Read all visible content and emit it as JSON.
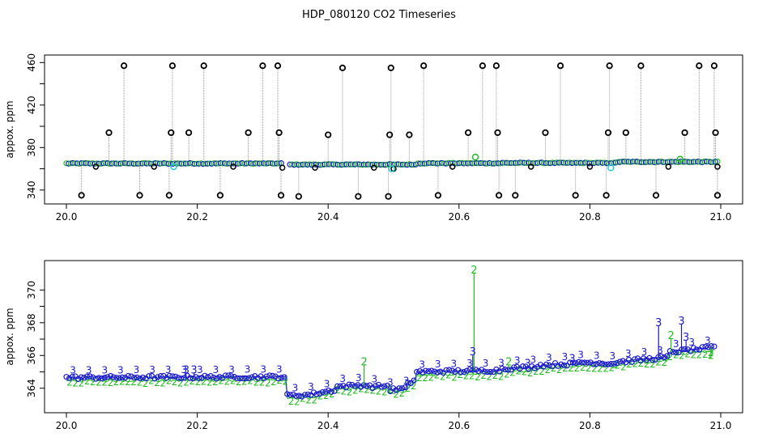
{
  "title": "HDP_080120  CO2 Timeseries",
  "colors": {
    "black": "#000000",
    "blue": "#1a1acc",
    "green": "#22bb22",
    "cyan": "#22cccc",
    "grey": "#9a9a9a"
  },
  "chart_data": [
    {
      "type": "scatter",
      "name": "top",
      "ylabel": "appox. ppm",
      "xlim": [
        20.0,
        21.0
      ],
      "ylim": [
        333,
        461
      ],
      "x_ticks": [
        20.0,
        20.2,
        20.4,
        20.6,
        20.8,
        21.0
      ],
      "x_tick_labels": [
        "20.0",
        "20.2",
        "20.4",
        "20.6",
        "20.8",
        "21.0"
      ],
      "y_ticks": [
        340,
        360,
        380,
        400,
        420,
        440,
        460
      ],
      "y_tick_labels": [
        "340",
        "",
        "380",
        "",
        "420",
        "",
        "460"
      ],
      "spike_points": [
        [
          20.023,
          335
        ],
        [
          20.065,
          394
        ],
        [
          20.088,
          457
        ],
        [
          20.112,
          335
        ],
        [
          20.157,
          335
        ],
        [
          20.16,
          394
        ],
        [
          20.162,
          457
        ],
        [
          20.187,
          394
        ],
        [
          20.21,
          457
        ],
        [
          20.235,
          335
        ],
        [
          20.278,
          394
        ],
        [
          20.3,
          457
        ],
        [
          20.323,
          457
        ],
        [
          20.325,
          394
        ],
        [
          20.328,
          335
        ],
        [
          20.355,
          334
        ],
        [
          20.4,
          392
        ],
        [
          20.422,
          455
        ],
        [
          20.446,
          334
        ],
        [
          20.492,
          334
        ],
        [
          20.494,
          392
        ],
        [
          20.496,
          455
        ],
        [
          20.524,
          392
        ],
        [
          20.546,
          457
        ],
        [
          20.568,
          335
        ],
        [
          20.614,
          394
        ],
        [
          20.636,
          457
        ],
        [
          20.657,
          457
        ],
        [
          20.659,
          394
        ],
        [
          20.661,
          335
        ],
        [
          20.686,
          335
        ],
        [
          20.732,
          394
        ],
        [
          20.755,
          457
        ],
        [
          20.778,
          335
        ],
        [
          20.825,
          335
        ],
        [
          20.828,
          394
        ],
        [
          20.83,
          457
        ],
        [
          20.855,
          394
        ],
        [
          20.878,
          457
        ],
        [
          20.901,
          335
        ],
        [
          20.945,
          394
        ],
        [
          20.967,
          457
        ],
        [
          20.99,
          457
        ],
        [
          20.992,
          394
        ],
        [
          20.995,
          335
        ]
      ],
      "low_points": [
        [
          20.045,
          362
        ],
        [
          20.134,
          362
        ],
        [
          20.255,
          362
        ],
        [
          20.33,
          361
        ],
        [
          20.38,
          361
        ],
        [
          20.47,
          361
        ],
        [
          20.5,
          360
        ],
        [
          20.59,
          362
        ],
        [
          20.71,
          362
        ],
        [
          20.8,
          362
        ],
        [
          20.92,
          362
        ],
        [
          20.995,
          362
        ]
      ],
      "colored_points": [
        [
          20.164,
          362
        ],
        [
          20.497,
          360
        ],
        [
          20.625,
          371
        ],
        [
          20.832,
          361
        ],
        [
          20.938,
          369
        ]
      ]
    },
    {
      "type": "scatter",
      "name": "bottom",
      "ylabel": "appox. ppm",
      "xlim": [
        20.0,
        21.0
      ],
      "ylim": [
        362.9,
        371.4
      ],
      "x_ticks": [
        20.0,
        20.2,
        20.4,
        20.6,
        20.8,
        21.0
      ],
      "x_tick_labels": [
        "20.0",
        "20.2",
        "20.4",
        "20.6",
        "20.8",
        "21.0"
      ],
      "y_ticks": [
        364,
        365,
        366,
        367,
        368,
        369,
        370
      ],
      "y_tick_labels": [
        "364",
        "",
        "366",
        "",
        "368",
        "",
        "370"
      ],
      "point_markers": [
        "2",
        "3"
      ],
      "baseline_segments": [
        [
          20.0,
          20.335,
          364.65,
          364.7
        ],
        [
          20.335,
          20.37,
          363.55,
          363.6
        ],
        [
          20.37,
          20.41,
          363.6,
          363.9
        ],
        [
          20.41,
          20.46,
          364.1,
          364.2
        ],
        [
          20.46,
          20.495,
          364.1,
          364.15
        ],
        [
          20.495,
          20.52,
          363.9,
          364.0
        ],
        [
          20.52,
          20.535,
          364.2,
          364.6
        ],
        [
          20.535,
          20.665,
          365.0,
          365.1
        ],
        [
          20.665,
          20.72,
          365.2,
          365.3
        ],
        [
          20.72,
          20.78,
          365.4,
          365.5
        ],
        [
          20.78,
          20.84,
          365.6,
          365.5
        ],
        [
          20.84,
          20.92,
          365.6,
          365.9
        ],
        [
          20.92,
          20.99,
          366.2,
          366.5
        ]
      ],
      "spike_labels": [
        [
          20.455,
          365.5,
          "2"
        ],
        [
          20.623,
          371.1,
          "2"
        ],
        [
          20.621,
          366.1,
          "3"
        ],
        [
          20.676,
          365.5,
          "2"
        ],
        [
          20.705,
          365.4,
          "3"
        ],
        [
          20.773,
          365.7,
          "3"
        ],
        [
          20.905,
          367.9,
          "3"
        ],
        [
          20.924,
          367.1,
          "2"
        ],
        [
          20.94,
          368.0,
          "3"
        ],
        [
          20.947,
          367.0,
          "3"
        ],
        [
          20.985,
          365.9,
          "2"
        ],
        [
          20.183,
          365.0,
          "3"
        ],
        [
          20.195,
          365.0,
          "3"
        ]
      ]
    }
  ]
}
